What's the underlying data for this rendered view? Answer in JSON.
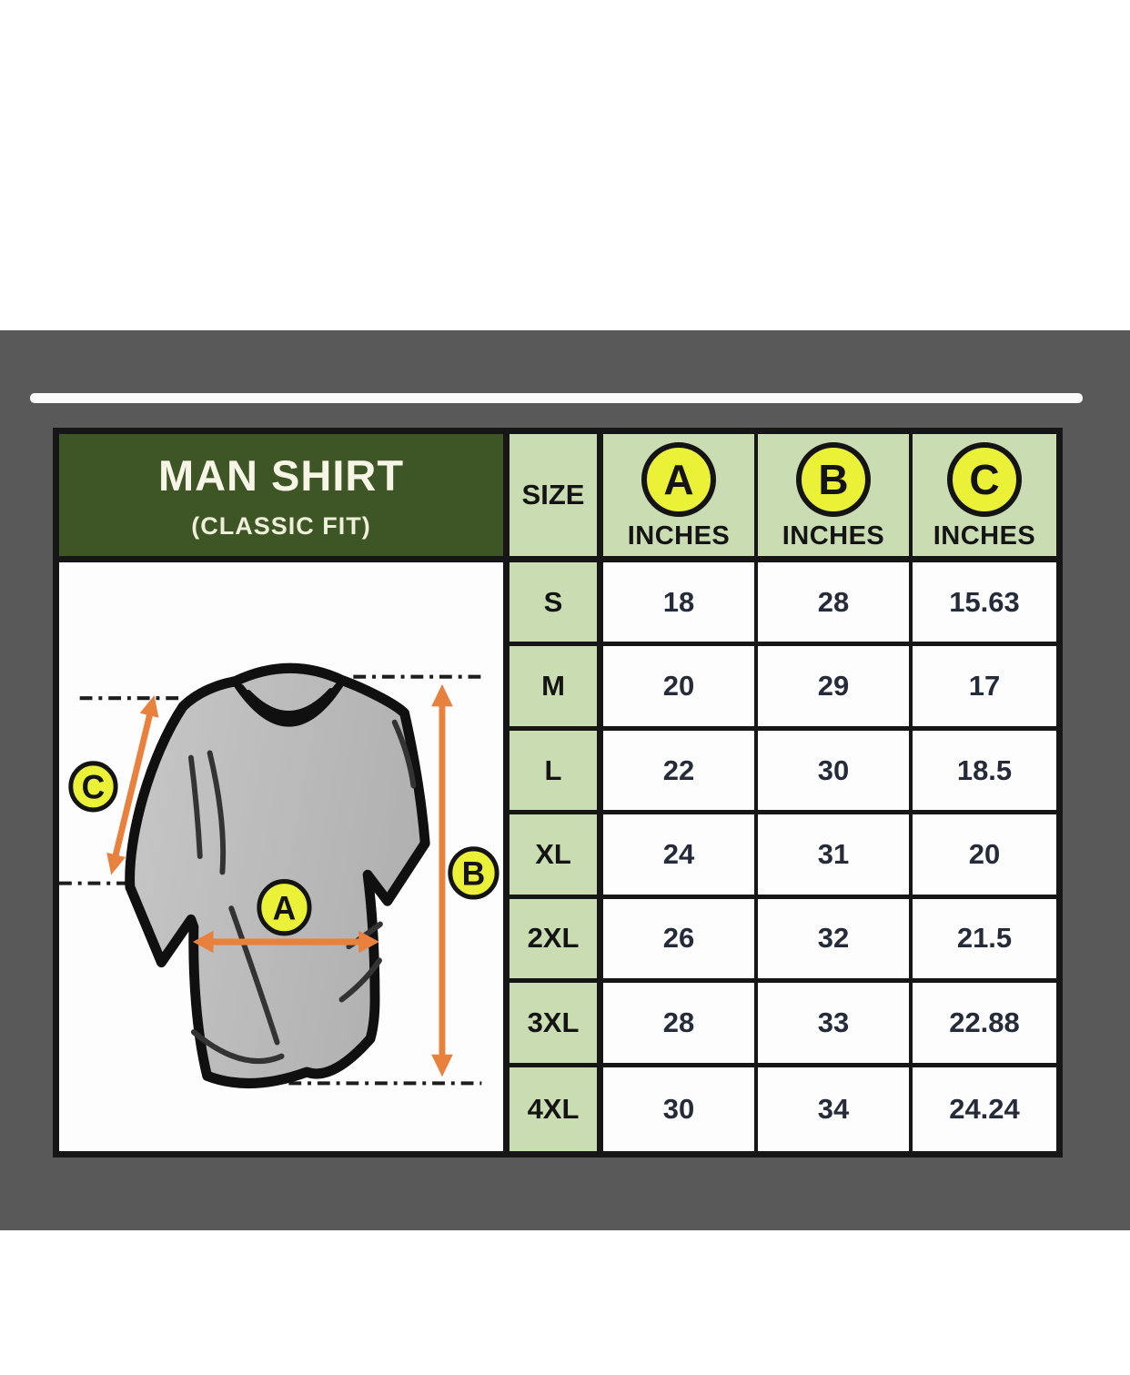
{
  "page": {
    "background_color": "#ffffff",
    "panel_color": "#595959"
  },
  "card": {
    "title": "MAN SHIRT",
    "subtitle": "(CLASSIC FIT)",
    "colors": {
      "title_bg": "#3e5626",
      "title_text": "#f7f5e6",
      "header_bg": "#cadcb2",
      "border": "#161616",
      "number_text": "#262b3a",
      "badge_fill": "#ebf136",
      "arrow_color": "#e8803e",
      "shirt_fill": "#bdbdbd"
    }
  },
  "table": {
    "size_header": "SIZE",
    "columns": [
      {
        "letter": "A",
        "unit": "INCHES"
      },
      {
        "letter": "B",
        "unit": "INCHES"
      },
      {
        "letter": "C",
        "unit": "INCHES"
      }
    ],
    "rows": [
      {
        "size": "S",
        "values": [
          "18",
          "28",
          "15.63"
        ]
      },
      {
        "size": "M",
        "values": [
          "20",
          "29",
          "17"
        ]
      },
      {
        "size": "L",
        "values": [
          "22",
          "30",
          "18.5"
        ]
      },
      {
        "size": "XL",
        "values": [
          "24",
          "31",
          "20"
        ]
      },
      {
        "size": "2XL",
        "values": [
          "26",
          "32",
          "21.5"
        ]
      },
      {
        "size": "3XL",
        "values": [
          "28",
          "33",
          "22.88"
        ]
      },
      {
        "size": "4XL",
        "values": [
          "30",
          "34",
          "24.24"
        ]
      }
    ]
  },
  "diagram": {
    "badges": {
      "a": "A",
      "b": "B",
      "c": "C"
    }
  }
}
